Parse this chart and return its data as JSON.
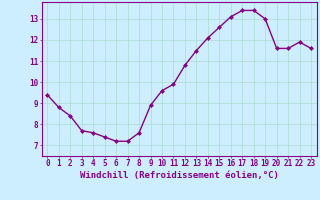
{
  "x": [
    0,
    1,
    2,
    3,
    4,
    5,
    6,
    7,
    8,
    9,
    10,
    11,
    12,
    13,
    14,
    15,
    16,
    17,
    18,
    19,
    20,
    21,
    22,
    23
  ],
  "y": [
    9.4,
    8.8,
    8.4,
    7.7,
    7.6,
    7.4,
    7.2,
    7.2,
    7.6,
    8.9,
    9.6,
    9.9,
    10.8,
    11.5,
    12.1,
    12.6,
    13.1,
    13.4,
    13.4,
    13.0,
    11.6,
    11.6,
    11.9,
    11.6
  ],
  "line_color": "#880088",
  "marker": "D",
  "markersize": 2.0,
  "linewidth": 1.0,
  "xlabel": "Windchill (Refroidissement éolien,°C)",
  "xlabel_fontsize": 6.5,
  "bg_color": "#cceeff",
  "grid_color": "#aaddcc",
  "tick_color": "#880088",
  "label_color": "#880088",
  "ylim": [
    6.5,
    13.8
  ],
  "xlim": [
    -0.5,
    23.5
  ],
  "yticks": [
    7,
    8,
    9,
    10,
    11,
    12,
    13
  ],
  "xticks": [
    0,
    1,
    2,
    3,
    4,
    5,
    6,
    7,
    8,
    9,
    10,
    11,
    12,
    13,
    14,
    15,
    16,
    17,
    18,
    19,
    20,
    21,
    22,
    23
  ],
  "tick_fontsize": 5.5,
  "spine_color": "#880088"
}
